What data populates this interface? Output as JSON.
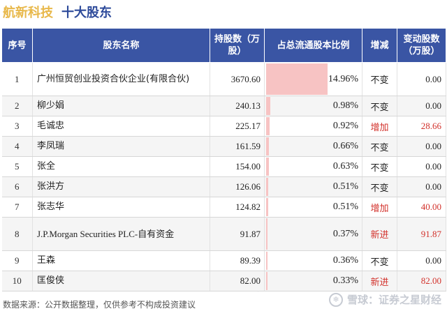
{
  "header": {
    "company": "航新科技",
    "subtitle": "十大股东"
  },
  "table": {
    "columns": [
      "序号",
      "股东名称",
      "持股数（万股）",
      "占总流通股本比例",
      "增减",
      "变动股数（万股）"
    ],
    "rows": [
      {
        "rank": "1",
        "name": "广州恒贸创业投资合伙企业(有限合伙)",
        "shares": "3670.60",
        "ratio": "14.96%",
        "ratio_value": 14.96,
        "change": "不变",
        "change_up": false,
        "delta": "0.00"
      },
      {
        "rank": "2",
        "name": "柳少娟",
        "shares": "240.13",
        "ratio": "0.98%",
        "ratio_value": 0.98,
        "change": "不变",
        "change_up": false,
        "delta": "0.00"
      },
      {
        "rank": "3",
        "name": "毛诚忠",
        "shares": "225.17",
        "ratio": "0.92%",
        "ratio_value": 0.92,
        "change": "增加",
        "change_up": true,
        "delta": "28.66"
      },
      {
        "rank": "4",
        "name": "李凤瑞",
        "shares": "161.59",
        "ratio": "0.66%",
        "ratio_value": 0.66,
        "change": "不变",
        "change_up": false,
        "delta": "0.00"
      },
      {
        "rank": "5",
        "name": "张全",
        "shares": "154.00",
        "ratio": "0.63%",
        "ratio_value": 0.63,
        "change": "不变",
        "change_up": false,
        "delta": "0.00"
      },
      {
        "rank": "6",
        "name": "张洪方",
        "shares": "126.06",
        "ratio": "0.51%",
        "ratio_value": 0.51,
        "change": "不变",
        "change_up": false,
        "delta": "0.00"
      },
      {
        "rank": "7",
        "name": "张志华",
        "shares": "124.82",
        "ratio": "0.51%",
        "ratio_value": 0.51,
        "change": "增加",
        "change_up": true,
        "delta": "40.00"
      },
      {
        "rank": "8",
        "name": "J.P.Morgan Securities PLC-自有资金",
        "shares": "91.87",
        "ratio": "0.37%",
        "ratio_value": 0.37,
        "change": "新进",
        "change_up": true,
        "delta": "91.87"
      },
      {
        "rank": "9",
        "name": "王森",
        "shares": "89.39",
        "ratio": "0.36%",
        "ratio_value": 0.36,
        "change": "不变",
        "change_up": false,
        "delta": "0.00"
      },
      {
        "rank": "10",
        "name": "匡俊侠",
        "shares": "82.00",
        "ratio": "0.33%",
        "ratio_value": 0.33,
        "change": "新进",
        "change_up": true,
        "delta": "82.00"
      }
    ]
  },
  "footer": {
    "source": "数据来源：公开数据整理，仅供参考不构成投资建议",
    "brand": "雪球：证券之星财经",
    "logo_icon": "snowball-icon"
  },
  "watermark": [
    "证券之星",
    "证券之星"
  ],
  "colors": {
    "header_bg": "#3a55a4",
    "company_title": "#e8b84a",
    "subtitle": "#2d4a9a",
    "positive": "#d2312b",
    "ratio_bar": "#f7c3c3"
  }
}
